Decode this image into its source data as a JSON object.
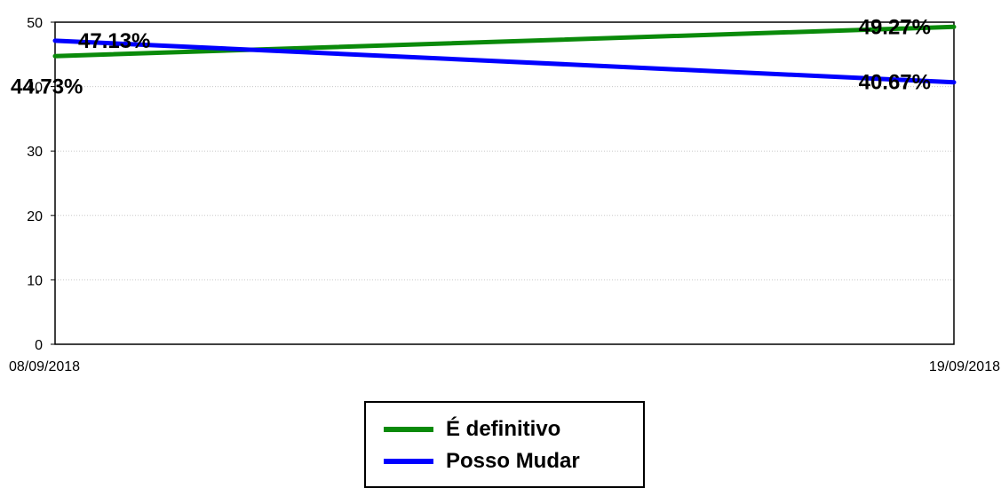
{
  "chart_data": {
    "type": "line",
    "x": [
      "08/09/2018",
      "19/09/2018"
    ],
    "ylim": [
      0,
      50
    ],
    "yticks": [
      0,
      10,
      20,
      30,
      40,
      50
    ],
    "grid": true,
    "legend_position": "bottom-center",
    "series": [
      {
        "name": "É definitivo",
        "color": "#0a8a0a",
        "values": [
          44.73,
          49.27
        ],
        "labels": [
          "44.73%",
          "49.27%"
        ]
      },
      {
        "name": "Posso Mudar",
        "color": "#0000ff",
        "values": [
          47.13,
          40.67
        ],
        "labels": [
          "47.13%",
          "40.67%"
        ]
      }
    ]
  }
}
